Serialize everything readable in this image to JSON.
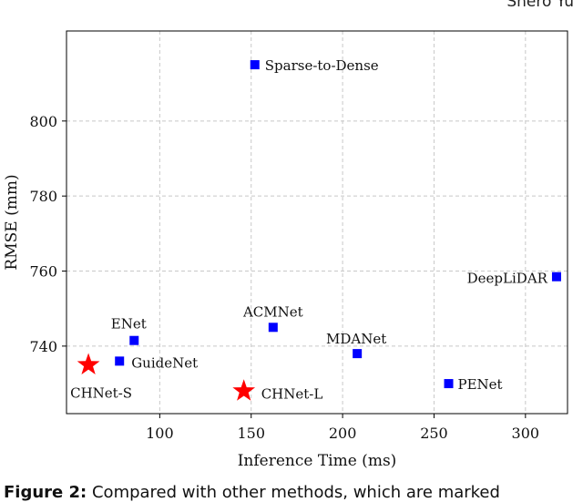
{
  "page": {
    "header_fragment": "Snero Yu",
    "caption_label": "Figure 2:",
    "caption_text": "Compared with other methods, which are marked"
  },
  "chart_data": {
    "type": "scatter",
    "title": "",
    "xlabel": "Inference Time (ms)",
    "ylabel": "RMSE (mm)",
    "xlim": [
      49,
      323
    ],
    "ylim": [
      722,
      824
    ],
    "xticks": [
      100,
      150,
      200,
      250,
      300
    ],
    "yticks": [
      740,
      760,
      780,
      800
    ],
    "grid": true,
    "points": [
      {
        "label": "Sparse-to-Dense",
        "x": 152,
        "y": 815,
        "marker": "square",
        "color": "#0000ff"
      },
      {
        "label": "DeepLiDAR",
        "x": 317,
        "y": 758.5,
        "marker": "square",
        "color": "#0000ff"
      },
      {
        "label": "ACMNet",
        "x": 162,
        "y": 745,
        "marker": "square",
        "color": "#0000ff"
      },
      {
        "label": "ENet",
        "x": 86,
        "y": 741.5,
        "marker": "square",
        "color": "#0000ff"
      },
      {
        "label": "MDANet",
        "x": 208,
        "y": 738,
        "marker": "square",
        "color": "#0000ff"
      },
      {
        "label": "GuideNet",
        "x": 78,
        "y": 736,
        "marker": "square",
        "color": "#0000ff"
      },
      {
        "label": "PENet",
        "x": 258,
        "y": 730,
        "marker": "square",
        "color": "#0000ff"
      },
      {
        "label": "CHNet-S",
        "x": 61,
        "y": 735,
        "marker": "star",
        "color": "#ff0000"
      },
      {
        "label": "CHNet-L",
        "x": 146,
        "y": 728,
        "marker": "star",
        "color": "#ff0000"
      }
    ]
  }
}
